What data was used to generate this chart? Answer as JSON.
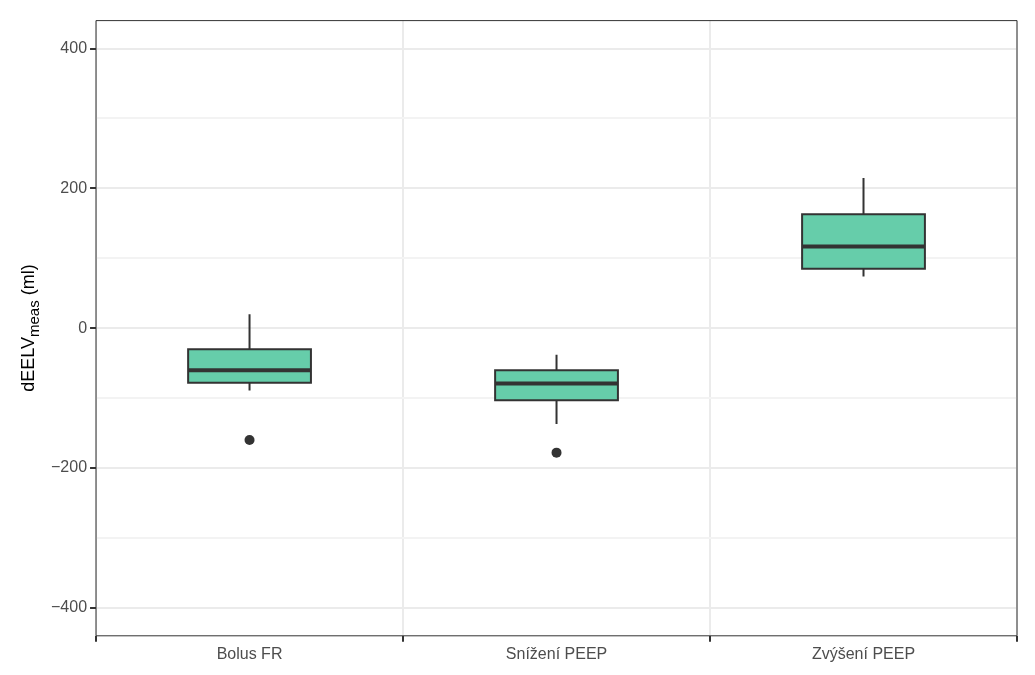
{
  "chart_data": {
    "type": "box",
    "ylabel": "dEELV$_{meas}$ (ml)",
    "categories": [
      "Bolus FR",
      "Snížení PEEP",
      "Zvýšení PEEP"
    ],
    "color": "#66cdaa",
    "boxes": [
      {
        "low": -89,
        "q1": -78,
        "median": -60,
        "q3": -30,
        "high": 20,
        "outliers": [
          -160
        ]
      },
      {
        "low": -137,
        "q1": -103,
        "median": -79,
        "q3": -60,
        "high": -38,
        "outliers": [
          -178
        ]
      },
      {
        "low": 74,
        "q1": 85,
        "median": 117,
        "q3": 163,
        "high": 215
      }
    ],
    "ylim": [
      -440,
      440
    ],
    "yticks": [
      {
        "value": -400,
        "label": "−400"
      },
      {
        "value": -300,
        "label": null
      },
      {
        "value": -200,
        "label": "−200"
      },
      {
        "value": -100,
        "label": null
      },
      0,
      {
        "value": 100,
        "label": null
      },
      200,
      {
        "value": 300,
        "label": null
      },
      400
    ],
    "grid": true
  }
}
